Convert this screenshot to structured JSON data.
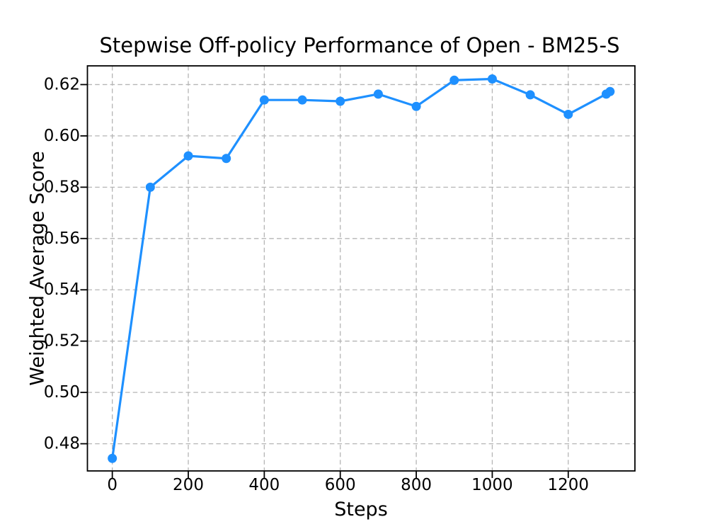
{
  "chart_data": {
    "type": "line",
    "title": "Stepwise Off-policy Performance of Open - BM25-S",
    "xlabel": "Steps",
    "ylabel": "Weighted Average Score",
    "x": [
      0,
      100,
      200,
      300,
      400,
      500,
      600,
      700,
      800,
      900,
      1000,
      1100,
      1200,
      1300,
      1310
    ],
    "y": [
      0.4743,
      0.58,
      0.5922,
      0.5912,
      0.614,
      0.614,
      0.6135,
      0.6163,
      0.6115,
      0.6217,
      0.6222,
      0.616,
      0.6084,
      0.6163,
      0.6173
    ],
    "xticks": [
      0,
      200,
      400,
      600,
      800,
      1000,
      1200
    ],
    "xtick_labels": [
      "0",
      "200",
      "400",
      "600",
      "800",
      "1000",
      "1200"
    ],
    "yticks": [
      0.48,
      0.5,
      0.52,
      0.54,
      0.56,
      0.58,
      0.6,
      0.62
    ],
    "ytick_labels": [
      "0.48",
      "0.50",
      "0.52",
      "0.54",
      "0.56",
      "0.58",
      "0.60",
      "0.62"
    ],
    "xlim": [
      -65.5,
      1375.5
    ],
    "ylim": [
      0.4694,
      0.6273
    ],
    "grid": true,
    "grid_linestyle": "dashed",
    "grid_color": "#b5b5b5",
    "line_color": "#1E90FF",
    "line_width": 3.2,
    "marker": "circle",
    "marker_size": 13,
    "legend": "none",
    "background_color": "#ffffff",
    "spine_color": "#000000"
  }
}
